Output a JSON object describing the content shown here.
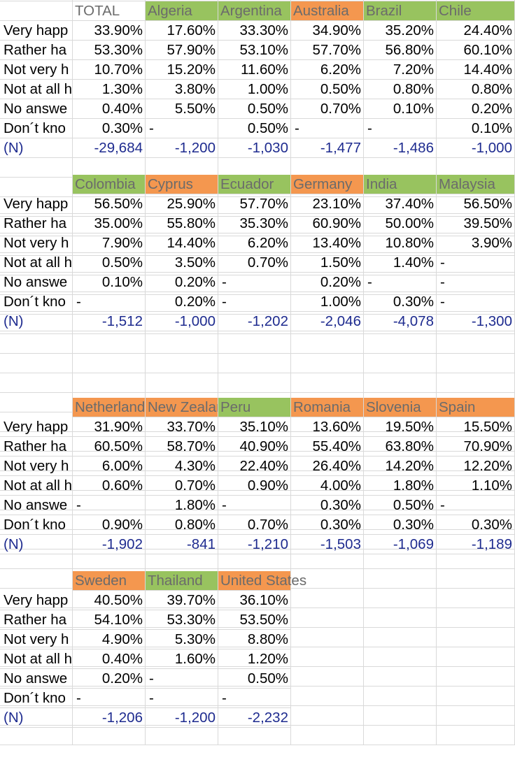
{
  "chart_data": {
    "type": "table",
    "row_labels": [
      "Very happ",
      "Rather ha",
      "Not very h",
      "Not at all h",
      "No answe",
      "Don´t kno",
      "(N)"
    ],
    "colors": {
      "green": "#98c35f",
      "orange": "#f4974f",
      "n_text": "#1e2b8f",
      "gridline": "#d9d9d9"
    },
    "blocks": [
      {
        "headers": [
          "TOTAL",
          "Algeria",
          "Argentina",
          "Australia",
          "Brazil",
          "Chile"
        ],
        "header_colors": [
          "none",
          "green",
          "green",
          "orange",
          "green",
          "green"
        ],
        "rows": [
          [
            "33.90%",
            "17.60%",
            "33.30%",
            "34.90%",
            "35.20%",
            "24.40%"
          ],
          [
            "53.30%",
            "57.90%",
            "53.10%",
            "57.70%",
            "56.80%",
            "60.10%"
          ],
          [
            "10.70%",
            "15.20%",
            "11.60%",
            "6.20%",
            "7.20%",
            "14.40%"
          ],
          [
            "1.30%",
            "3.80%",
            "1.00%",
            "0.50%",
            "0.80%",
            "0.80%"
          ],
          [
            "0.40%",
            "5.50%",
            "0.50%",
            "0.70%",
            "0.10%",
            "0.20%"
          ],
          [
            "0.30%",
            "-",
            "0.50%",
            "-",
            "-",
            "0.10%"
          ],
          [
            "-29,684",
            "-1,200",
            "-1,030",
            "-1,477",
            "-1,486",
            "-1,000"
          ]
        ]
      },
      {
        "headers": [
          "Colombia",
          "Cyprus",
          "Ecuador",
          "Germany",
          "India",
          "Malaysia"
        ],
        "header_colors": [
          "green",
          "orange",
          "green",
          "orange",
          "green",
          "green"
        ],
        "rows": [
          [
            "56.50%",
            "25.90%",
            "57.70%",
            "23.10%",
            "37.40%",
            "56.50%"
          ],
          [
            "35.00%",
            "55.80%",
            "35.30%",
            "60.90%",
            "50.00%",
            "39.50%"
          ],
          [
            "7.90%",
            "14.40%",
            "6.20%",
            "13.40%",
            "10.80%",
            "3.90%"
          ],
          [
            "0.50%",
            "3.50%",
            "0.70%",
            "1.50%",
            "1.40%",
            "-"
          ],
          [
            "0.10%",
            "0.20%",
            "-",
            "0.20%",
            "-",
            "-"
          ],
          [
            "-",
            "0.20%",
            "-",
            "1.00%",
            "0.30%",
            "-"
          ],
          [
            "-1,512",
            "-1,000",
            "-1,202",
            "-2,046",
            "-4,078",
            "-1,300"
          ]
        ]
      },
      {
        "headers": [
          "Netherlands",
          "New Zealand",
          "Peru",
          "Romania",
          "Slovenia",
          "Spain"
        ],
        "header_colors": [
          "orange",
          "orange",
          "green",
          "orange",
          "orange",
          "orange"
        ],
        "rows": [
          [
            "31.90%",
            "33.70%",
            "35.10%",
            "13.60%",
            "19.50%",
            "15.50%"
          ],
          [
            "60.50%",
            "58.70%",
            "40.90%",
            "55.40%",
            "63.80%",
            "70.90%"
          ],
          [
            "6.00%",
            "4.30%",
            "22.40%",
            "26.40%",
            "14.20%",
            "12.20%"
          ],
          [
            "0.60%",
            "0.70%",
            "0.90%",
            "4.00%",
            "1.80%",
            "1.10%"
          ],
          [
            "-",
            "1.80%",
            "-",
            "0.30%",
            "0.50%",
            "-"
          ],
          [
            "0.90%",
            "0.80%",
            "0.70%",
            "0.30%",
            "0.30%",
            "0.30%"
          ],
          [
            "-1,902",
            "-841",
            "-1,210",
            "-1,503",
            "-1,069",
            "-1,189"
          ]
        ]
      },
      {
        "headers": [
          "Sweden",
          "Thailand",
          "United States"
        ],
        "header_colors": [
          "orange",
          "green",
          "orange"
        ],
        "rows": [
          [
            "40.50%",
            "39.70%",
            "36.10%"
          ],
          [
            "54.10%",
            "53.30%",
            "53.50%"
          ],
          [
            "4.90%",
            "5.30%",
            "8.80%"
          ],
          [
            "0.40%",
            "1.60%",
            "1.20%"
          ],
          [
            "0.20%",
            "-",
            "0.50%"
          ],
          [
            "-",
            "-",
            "-"
          ],
          [
            "-1,206",
            "-1,200",
            "-2,232"
          ]
        ]
      }
    ]
  }
}
